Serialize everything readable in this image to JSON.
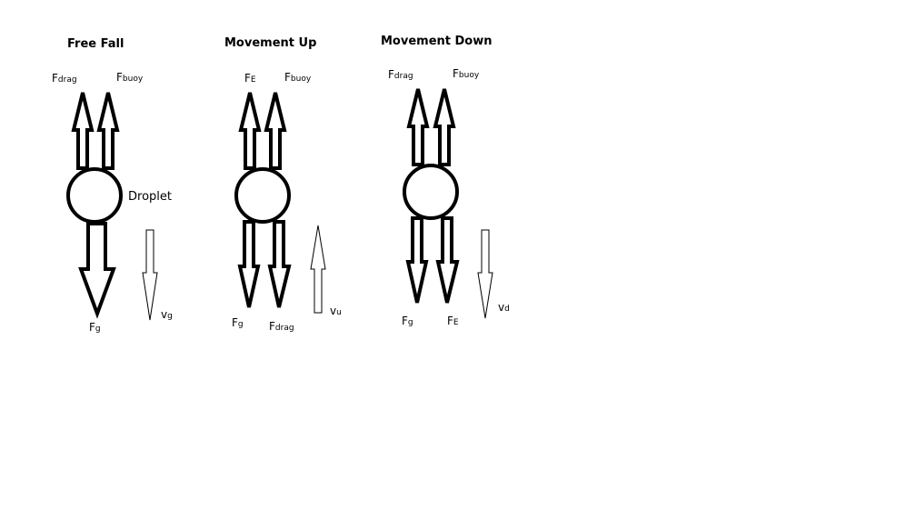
{
  "panels": [
    {
      "title": "Free Fall",
      "forces_up": [
        {
          "main": "F",
          "sub": "drag"
        },
        {
          "main": "F",
          "sub": "buoy"
        }
      ],
      "forces_down": [
        {
          "main": "F",
          "sub": "g"
        }
      ],
      "velocity": {
        "main": "v",
        "sub": "g",
        "direction": "down"
      },
      "droplet_label": "Droplet"
    },
    {
      "title": "Movement Up",
      "forces_up": [
        {
          "main": "F",
          "sub": "E"
        },
        {
          "main": "F",
          "sub": "buoy"
        }
      ],
      "forces_down": [
        {
          "main": "F",
          "sub": "g"
        },
        {
          "main": "F",
          "sub": "drag"
        }
      ],
      "velocity": {
        "main": "v",
        "sub": "u",
        "direction": "up"
      }
    },
    {
      "title": "Movement Down",
      "forces_up": [
        {
          "main": "F",
          "sub": "drag"
        },
        {
          "main": "F",
          "sub": "buoy"
        }
      ],
      "forces_down": [
        {
          "main": "F",
          "sub": "g"
        },
        {
          "main": "F",
          "sub": "E"
        }
      ],
      "velocity": {
        "main": "v",
        "sub": "d",
        "direction": "down"
      }
    }
  ],
  "colors": {
    "stroke": "#000000",
    "background": "#ffffff"
  }
}
